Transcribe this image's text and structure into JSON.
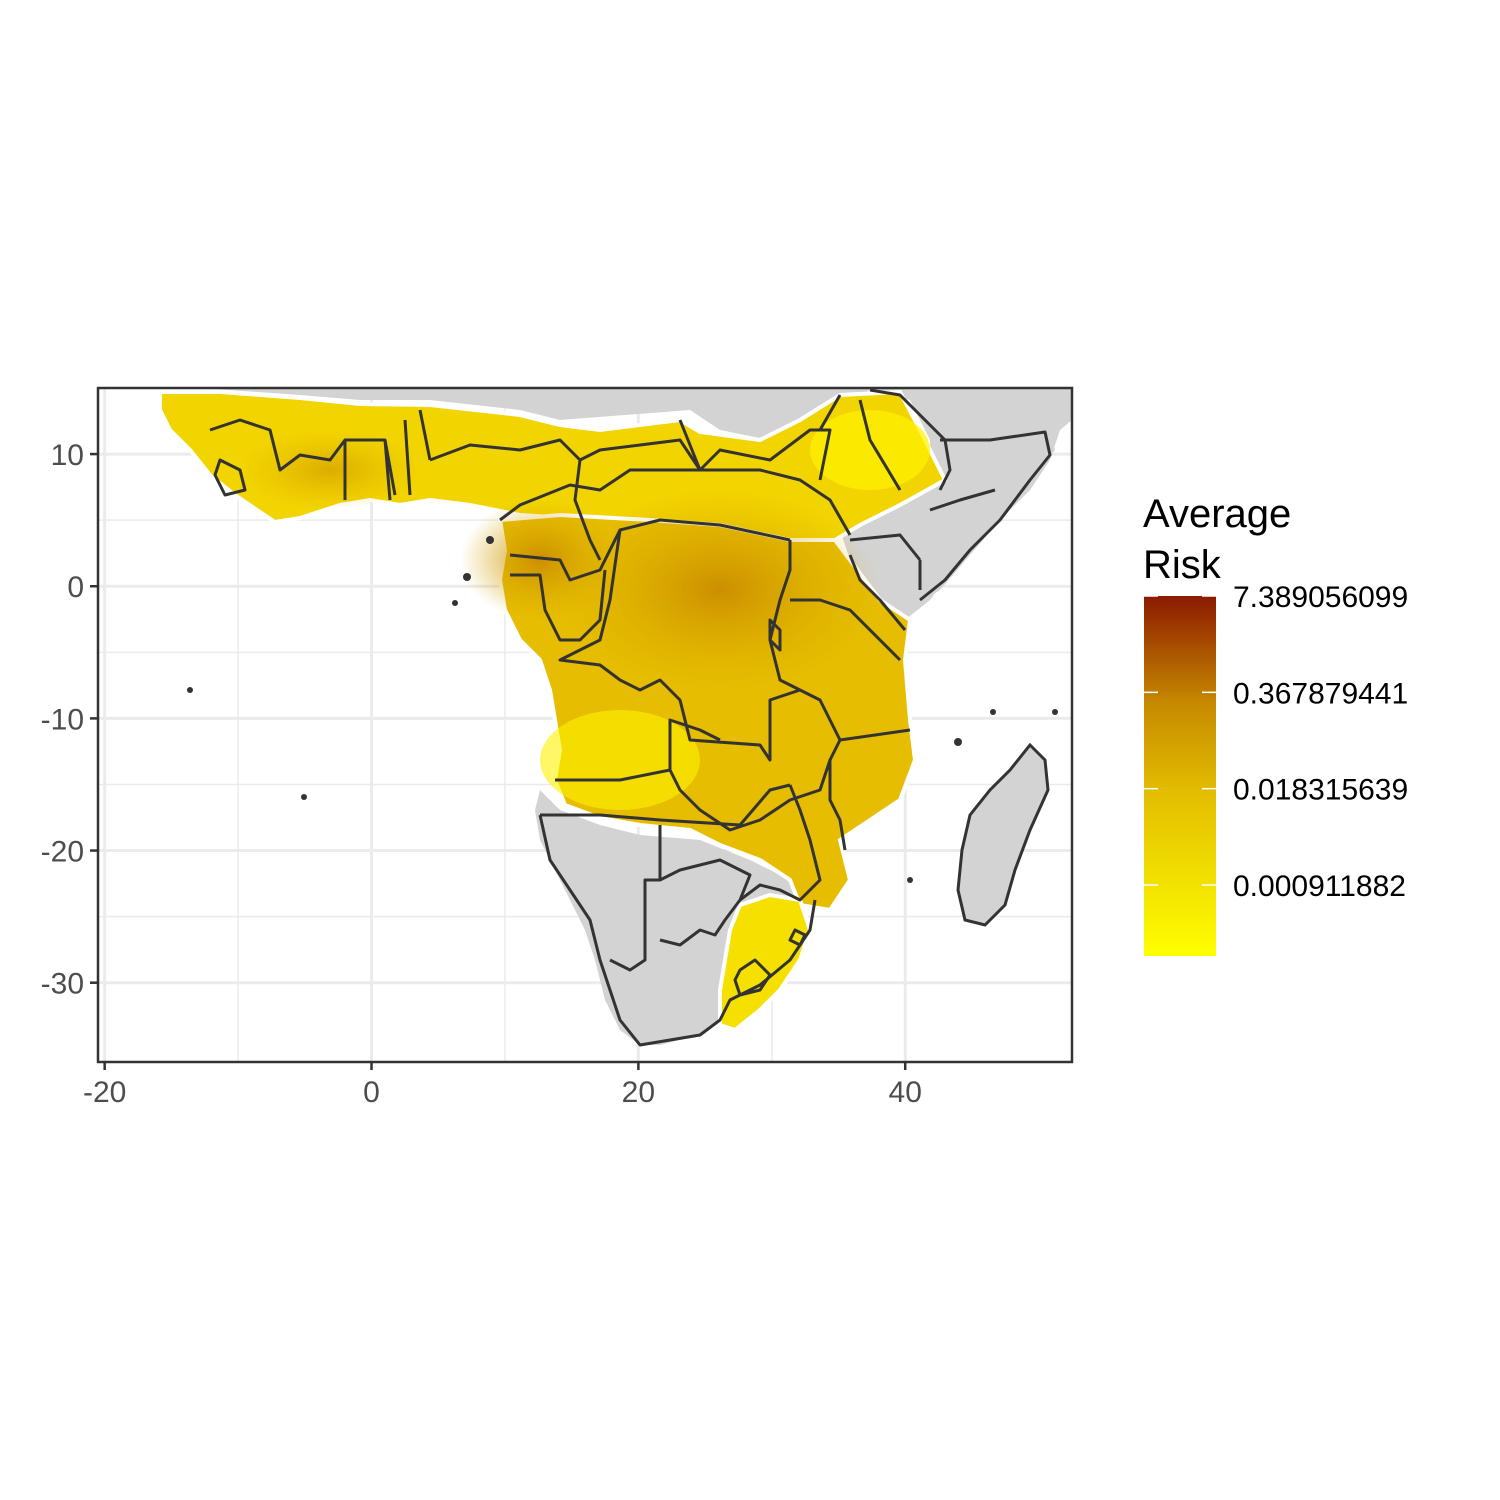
{
  "chart_data": {
    "type": "heatmap",
    "title": "",
    "xlabel": "",
    "ylabel": "",
    "xlim": [
      -20.5,
      52.5
    ],
    "ylim": [
      -36,
      15
    ],
    "x_ticks": [
      "-20",
      "0",
      "20",
      "40"
    ],
    "x_tick_values": [
      -20,
      0,
      20,
      40
    ],
    "y_ticks": [
      "10",
      "0",
      "-10",
      "-20",
      "-30"
    ],
    "y_tick_values": [
      10,
      0,
      -10,
      -20,
      -30
    ],
    "grid": true,
    "legend": {
      "title_lines": [
        "Average",
        "Risk"
      ],
      "placement": "right",
      "labels": [
        "7.389056099",
        "0.367879441",
        "0.018315639",
        "0.000911882"
      ],
      "label_values": [
        7.389056099,
        0.367879441,
        0.018315639,
        0.000911882
      ],
      "scale": "log",
      "low_color": "#FFFF00",
      "mid_color": "#D9A100",
      "high_color": "#8B1A00"
    },
    "colors": {
      "background_land": "#D3D3D3",
      "border_color": "#333333",
      "coast_halo": "#FFFFFF",
      "grid_color": "#EBEBEB"
    }
  }
}
